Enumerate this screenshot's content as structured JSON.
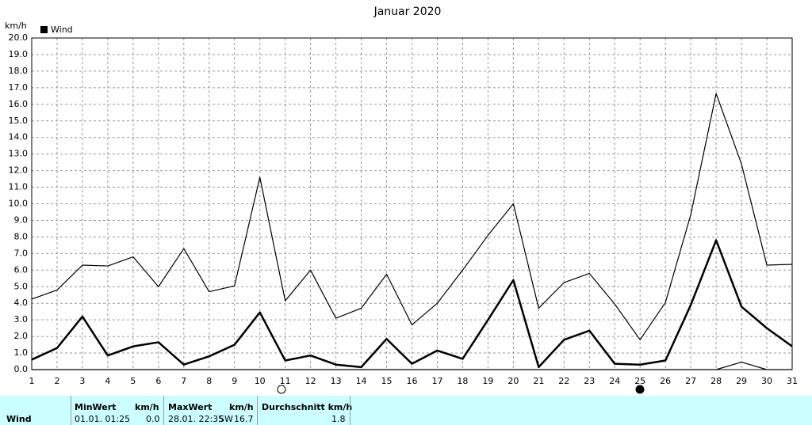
{
  "chart_data": {
    "type": "line",
    "title": "Januar 2020",
    "y_label": "km/h",
    "x": [
      1,
      2,
      3,
      4,
      5,
      6,
      7,
      8,
      9,
      10,
      11,
      12,
      13,
      14,
      15,
      16,
      17,
      18,
      19,
      20,
      21,
      22,
      23,
      24,
      25,
      26,
      27,
      28,
      29,
      30,
      31
    ],
    "xlim": [
      1,
      31
    ],
    "ylim": [
      0,
      20
    ],
    "yticks": [
      {
        "value": 0,
        "label": "0.0"
      },
      {
        "value": 1,
        "label": "1.0"
      },
      {
        "value": 2,
        "label": "2.0"
      },
      {
        "value": 3,
        "label": "3.0"
      },
      {
        "value": 4,
        "label": "4.0"
      },
      {
        "value": 5,
        "label": "5.0"
      },
      {
        "value": 6,
        "label": "6.0"
      },
      {
        "value": 7,
        "label": "7.0"
      },
      {
        "value": 8,
        "label": "8.0"
      },
      {
        "value": 9,
        "label": "9.0"
      },
      {
        "value": 10,
        "label": "10.0"
      },
      {
        "value": 11,
        "label": "11.0"
      },
      {
        "value": 12,
        "label": "12.0"
      },
      {
        "value": 13,
        "label": "13.0"
      },
      {
        "value": 14,
        "label": "14.0"
      },
      {
        "value": 15,
        "label": "15.0"
      },
      {
        "value": 16,
        "label": "16.0"
      },
      {
        "value": 17,
        "label": "17.0"
      },
      {
        "value": 18,
        "label": "18.0"
      },
      {
        "value": 19,
        "label": "19.0"
      },
      {
        "value": 20,
        "label": "20.0"
      }
    ],
    "grid": true,
    "series": [
      {
        "name": "Wind",
        "color": "#000000",
        "width": 2.5,
        "values": [
          0.6,
          1.3,
          3.2,
          0.85,
          1.4,
          1.65,
          0.3,
          0.8,
          1.5,
          3.45,
          0.55,
          0.85,
          0.3,
          0.15,
          1.85,
          0.35,
          1.15,
          0.65,
          3.0,
          5.4,
          0.15,
          1.8,
          2.35,
          0.35,
          0.3,
          0.55,
          3.9,
          7.8,
          3.8,
          2.5,
          1.4
        ]
      },
      {
        "color": "#000000",
        "width": 1.2,
        "values": [
          4.25,
          4.8,
          6.3,
          6.25,
          6.8,
          5.0,
          7.3,
          4.7,
          5.05,
          11.6,
          4.15,
          6.0,
          3.1,
          3.7,
          5.75,
          2.7,
          4.0,
          6.0,
          8.1,
          10.0,
          3.7,
          5.25,
          5.8,
          3.95,
          1.8,
          4.05,
          9.35,
          16.65,
          12.4,
          6.3,
          6.35
        ]
      },
      {
        "color": "#000000",
        "width": 1.2,
        "values": [
          0,
          0,
          0,
          0,
          0,
          0,
          0,
          0,
          0,
          0,
          0,
          0,
          0,
          0,
          0,
          0,
          0,
          0,
          0,
          0,
          0,
          0,
          0,
          0,
          0,
          0,
          0,
          0,
          0.45,
          0,
          0
        ]
      }
    ]
  },
  "table": {
    "row_label": "Wind",
    "columns": [
      {
        "header": "MinWert",
        "unit": "km/h",
        "date": "01.01.  01:25",
        "value": "0.0"
      },
      {
        "header": "MaxWert",
        "unit": "km/h",
        "date": "28.01.  22:35",
        "dir": "SW",
        "value": "16.7"
      },
      {
        "header": "Durchschnitt km/h",
        "value": "1.8"
      }
    ]
  }
}
